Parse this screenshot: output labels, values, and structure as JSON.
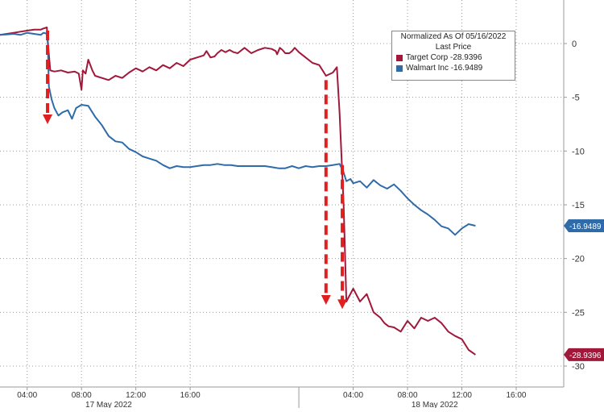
{
  "chart_data": {
    "type": "line",
    "legend_title": "Normalized As Of 05/16/2022",
    "legend_subtitle": "Last Price",
    "legend_position": "top-right",
    "grid": true,
    "y_axis_side": "right",
    "ylim": [
      -31,
      4
    ],
    "y_ticks": [
      "0",
      "-5",
      "-10",
      "-15",
      "-20",
      "-25",
      "-30"
    ],
    "y_tick_values": [
      0,
      -5,
      -10,
      -15,
      -20,
      -25,
      -30
    ],
    "x_ticks": [
      "04:00",
      "08:00",
      "12:00",
      "16:00",
      "04:00",
      "08:00",
      "12:00",
      "16:00"
    ],
    "x_dates": [
      "17 May 2022",
      "18 May 2022"
    ],
    "series": [
      {
        "name": "Target Corp",
        "legend_label": "Target Corp -28.9396",
        "last_value": "-28.9396",
        "color": "#a0193a",
        "x": [
          0,
          0.5,
          1,
          1.5,
          2,
          2.5,
          3,
          3.2,
          3.45,
          3.5,
          3.7,
          4,
          4.5,
          5,
          5.5,
          5.8,
          6,
          6.1,
          6.3,
          6.5,
          6.8,
          7,
          7.5,
          8,
          8.5,
          9,
          9.5,
          10,
          10.5,
          11,
          11.5,
          12,
          12.5,
          13,
          13.5,
          14,
          14.5,
          15,
          15.2,
          15.5,
          15.8,
          16,
          16.3,
          16.6,
          16.9,
          17.2,
          17.5,
          18,
          18.5,
          19,
          19.5,
          20,
          20.3,
          20.4,
          20.6,
          20.8,
          21,
          21.3,
          21.5,
          21.7,
          22,
          22.5,
          23,
          23.5,
          24,
          24.5,
          24.8,
          25,
          25.3,
          25.5,
          26,
          26.5,
          27,
          27.5,
          28,
          28.3,
          28.6,
          29,
          29.5,
          30,
          30.5,
          31,
          31.5,
          32,
          32.5,
          33,
          33.5,
          34,
          34.5,
          35
        ],
        "y": [
          0.8,
          0.9,
          1.0,
          1.1,
          1.2,
          1.3,
          1.3,
          1.4,
          1.5,
          0.5,
          -2.5,
          -2.6,
          -2.5,
          -2.7,
          -2.6,
          -2.8,
          -4.3,
          -2.5,
          -2.8,
          -1.5,
          -2.5,
          -3.0,
          -3.2,
          -3.4,
          -3.0,
          -3.2,
          -2.7,
          -2.3,
          -2.6,
          -2.2,
          -2.5,
          -2.0,
          -2.3,
          -1.8,
          -2.1,
          -1.5,
          -1.3,
          -1.1,
          -0.7,
          -1.3,
          -1.2,
          -0.9,
          -0.6,
          -0.8,
          -0.6,
          -0.8,
          -0.9,
          -0.4,
          -0.9,
          -0.6,
          -0.4,
          -0.5,
          -0.7,
          -1.0,
          -0.4,
          -0.6,
          -0.9,
          -0.9,
          -0.7,
          -0.4,
          -0.8,
          -1.3,
          -1.8,
          -2.0,
          -3.0,
          -2.7,
          -2.2,
          -6.5,
          -15.0,
          -24.0,
          -22.8,
          -24.0,
          -23.3,
          -25.0,
          -25.5,
          -26.0,
          -26.3,
          -26.4,
          -26.8,
          -25.8,
          -26.5,
          -25.5,
          -25.8,
          -25.5,
          -26.0,
          -26.8,
          -27.2,
          -27.5,
          -28.5,
          -28.9396
        ]
      },
      {
        "name": "Walmart Inc",
        "legend_label": "Walmart Inc -16.9489",
        "last_value": "-16.9489",
        "color": "#2f6ba8",
        "x": [
          0,
          0.5,
          1,
          1.5,
          2,
          2.5,
          3,
          3.2,
          3.5,
          3.6,
          3.8,
          4,
          4.3,
          4.6,
          5,
          5.3,
          5.6,
          6,
          6.5,
          7,
          7.5,
          8,
          8.5,
          9,
          9.5,
          10,
          10.5,
          11,
          11.5,
          12,
          12.5,
          13,
          13.5,
          14,
          14.5,
          15,
          15.5,
          16,
          16.5,
          17,
          17.5,
          18,
          18.5,
          19,
          19.5,
          20,
          20.5,
          21,
          21.5,
          22,
          22.5,
          23,
          23.5,
          24,
          24.5,
          25,
          25.3,
          25.5,
          25.8,
          26,
          26.5,
          27,
          27.5,
          28,
          28.5,
          29,
          29.5,
          30,
          30.5,
          31,
          31.5,
          32,
          32.5,
          33,
          33.5,
          34,
          34.5,
          35
        ],
        "y": [
          0.8,
          0.85,
          0.9,
          0.8,
          1.0,
          0.9,
          0.8,
          1.0,
          0.9,
          -4.0,
          -5.2,
          -6.0,
          -6.7,
          -6.4,
          -6.2,
          -7.0,
          -6.0,
          -5.7,
          -5.8,
          -6.8,
          -7.6,
          -8.6,
          -9.1,
          -9.2,
          -9.8,
          -10.1,
          -10.5,
          -10.7,
          -10.9,
          -11.3,
          -11.6,
          -11.4,
          -11.5,
          -11.5,
          -11.4,
          -11.3,
          -11.3,
          -11.2,
          -11.3,
          -11.3,
          -11.4,
          -11.4,
          -11.4,
          -11.4,
          -11.4,
          -11.5,
          -11.6,
          -11.6,
          -11.4,
          -11.6,
          -11.4,
          -11.5,
          -11.4,
          -11.4,
          -11.3,
          -11.2,
          -12.0,
          -12.8,
          -12.6,
          -13.0,
          -12.8,
          -13.4,
          -12.7,
          -13.2,
          -13.5,
          -13.1,
          -13.7,
          -14.4,
          -15.0,
          -15.5,
          -15.9,
          -16.4,
          -17.0,
          -17.2,
          -17.8,
          -17.2,
          -16.8,
          -16.9489
        ]
      }
    ],
    "annotations": [
      {
        "type": "dashed-arrow",
        "color": "#e02020",
        "x": 3.5,
        "from": 1.2,
        "to": -7.5
      },
      {
        "type": "dashed-arrow",
        "color": "#e02020",
        "x": 24.0,
        "from": -3.4,
        "to": -24.3
      },
      {
        "type": "dashed-arrow",
        "color": "#e02020",
        "x": 25.2,
        "from": -11.3,
        "to": -24.7
      }
    ]
  }
}
